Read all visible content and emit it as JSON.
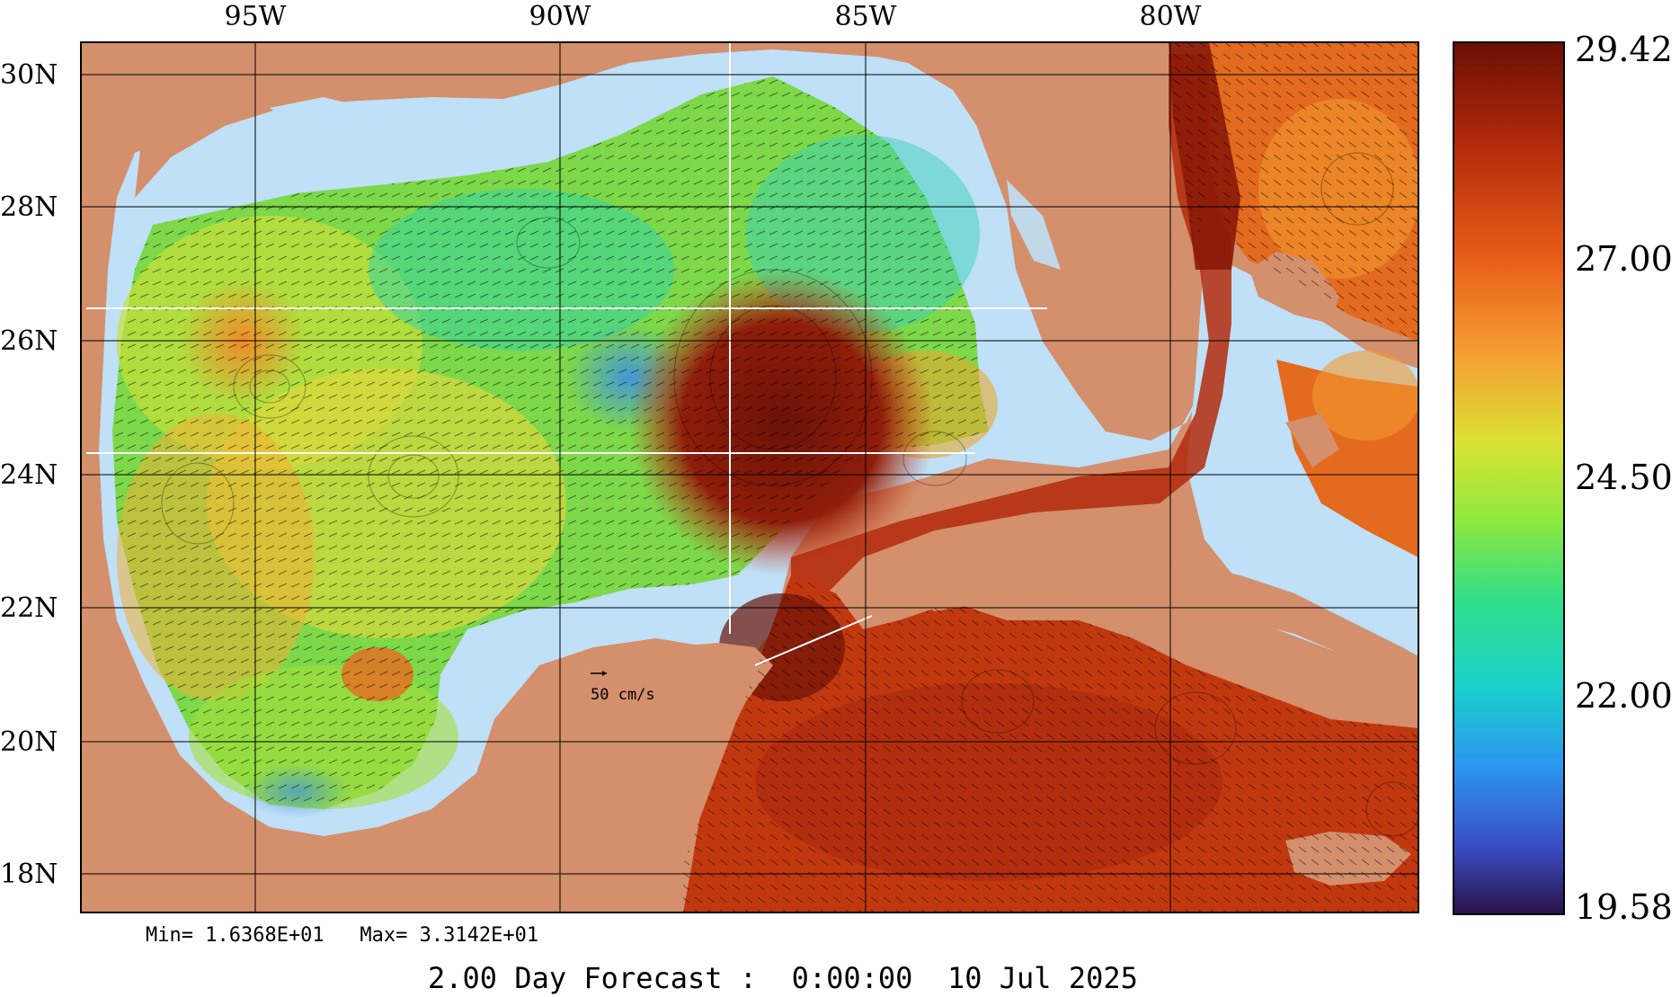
{
  "map": {
    "lon_labels": [
      "95W",
      "90W",
      "85W",
      "80W"
    ],
    "lat_labels": [
      "30N",
      "28N",
      "26N",
      "24N",
      "22N",
      "20N",
      "18N"
    ],
    "scale_label": "50 cm/s",
    "stats_text": "Min= 1.6368E+01   Max= 3.3142E+01",
    "forecast_text": "2.00 Day Forecast :  0:00:00  10 Jul 2025"
  },
  "colorbar": {
    "tick_labels": [
      "29.42",
      "27.00",
      "24.50",
      "22.00",
      "19.58"
    ],
    "min": 19.58,
    "max": 29.42
  },
  "colors": {
    "land": "#d48f6c",
    "shelf_water": "#bfe0f7",
    "gulf_green": "#6cd24b",
    "warm_orange": "#e8641a",
    "deep_red": "#a8280e",
    "eddy_dark": "#6b1207"
  }
}
